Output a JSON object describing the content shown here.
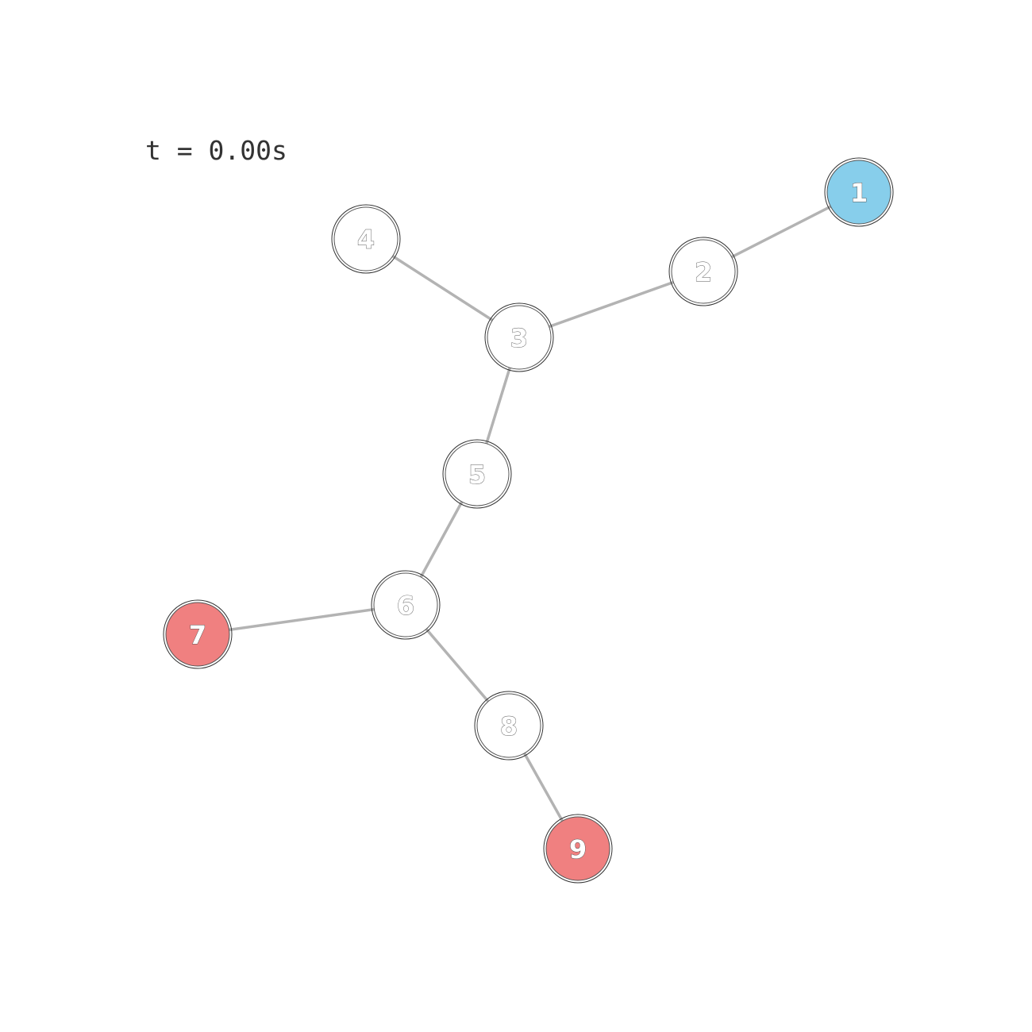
{
  "time_label": "t = 0.00s",
  "colors": {
    "edge": "#b3b3b3",
    "default_node": "#ffffff",
    "source_node": "#87ceeb",
    "target_node": "#f08080"
  },
  "nodes": [
    {
      "id": "1",
      "label": "1",
      "state": "source"
    },
    {
      "id": "2",
      "label": "2",
      "state": "default"
    },
    {
      "id": "3",
      "label": "3",
      "state": "default"
    },
    {
      "id": "4",
      "label": "4",
      "state": "default"
    },
    {
      "id": "5",
      "label": "5",
      "state": "default"
    },
    {
      "id": "6",
      "label": "6",
      "state": "default"
    },
    {
      "id": "7",
      "label": "7",
      "state": "target"
    },
    {
      "id": "8",
      "label": "8",
      "state": "default"
    },
    {
      "id": "9",
      "label": "9",
      "state": "target"
    }
  ],
  "edges": [
    {
      "from": "1",
      "to": "2"
    },
    {
      "from": "2",
      "to": "3"
    },
    {
      "from": "3",
      "to": "4"
    },
    {
      "from": "3",
      "to": "5"
    },
    {
      "from": "5",
      "to": "6"
    },
    {
      "from": "6",
      "to": "7"
    },
    {
      "from": "6",
      "to": "8"
    },
    {
      "from": "8",
      "to": "9"
    }
  ]
}
